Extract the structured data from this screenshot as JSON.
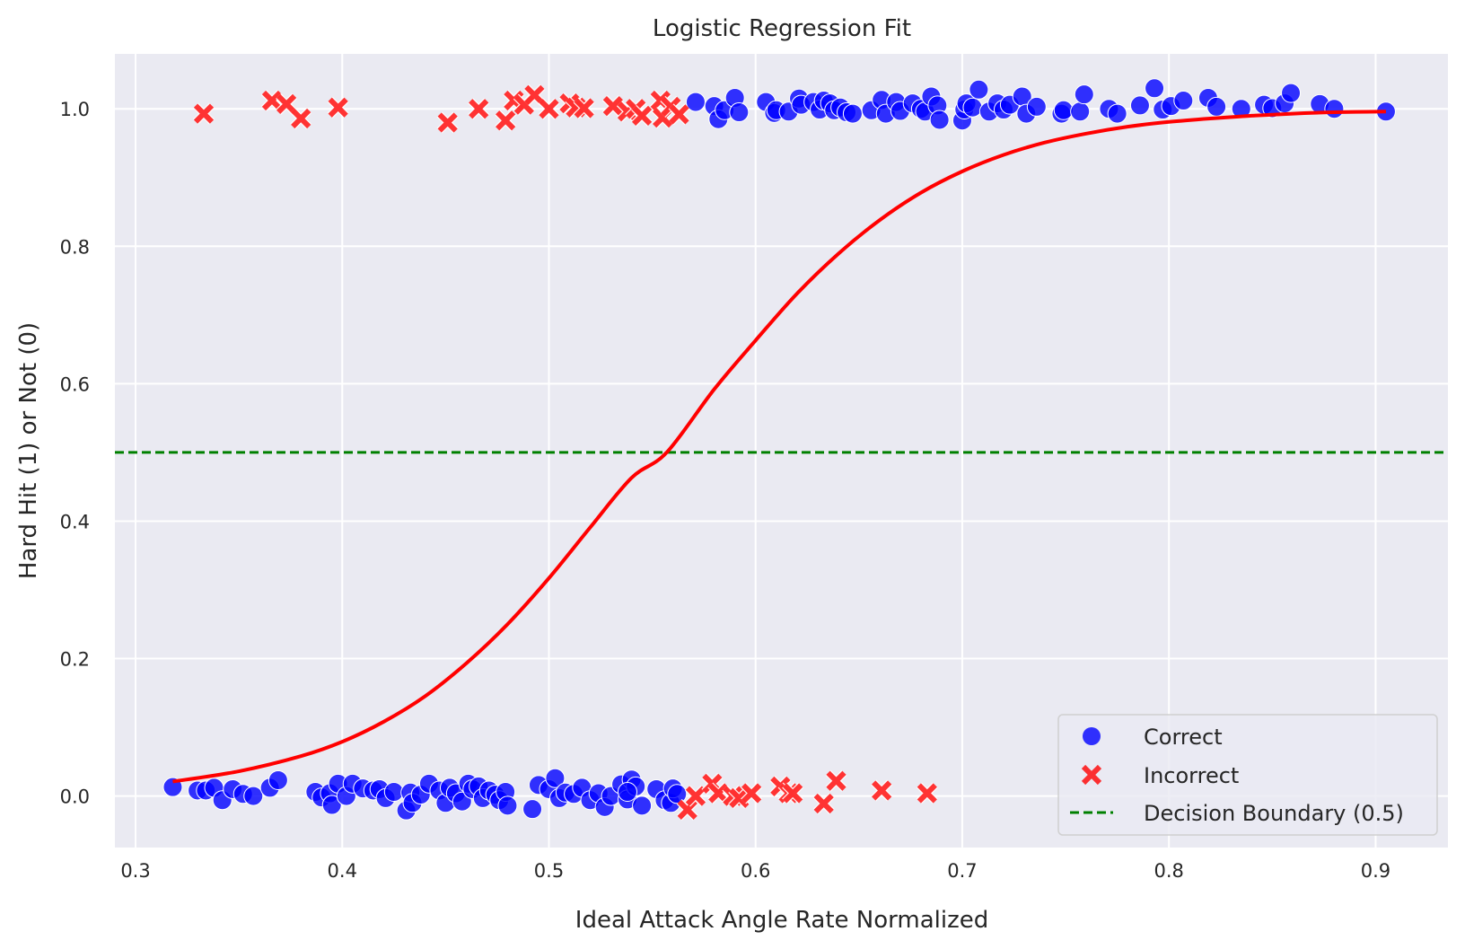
{
  "colors": {
    "background": "#EAEAF2",
    "grid": "#FFFFFF",
    "correct": "#0000FF",
    "incorrect": "#FF0000",
    "curve": "#FF0000",
    "boundary": "#008000"
  },
  "chart_data": {
    "type": "scatter",
    "title": "Logistic Regression Fit",
    "xlabel": "Ideal Attack Angle Rate Normalized",
    "ylabel": "Hard Hit (1) or Not (0)",
    "xlim": [
      0.29,
      0.935
    ],
    "ylim": [
      -0.075,
      1.08
    ],
    "xticks": [
      0.3,
      0.4,
      0.5,
      0.6,
      0.7,
      0.8,
      0.9
    ],
    "xtick_labels": [
      "0.3",
      "0.4",
      "0.5",
      "0.6",
      "0.7",
      "0.8",
      "0.9"
    ],
    "yticks": [
      0.0,
      0.2,
      0.4,
      0.6,
      0.8,
      1.0
    ],
    "ytick_labels": [
      "0.0",
      "0.2",
      "0.4",
      "0.6",
      "0.8",
      "1.0"
    ],
    "grid": true,
    "legend_position": "bottom-right",
    "legend": [
      {
        "label": "Correct",
        "marker": "circle"
      },
      {
        "label": "Incorrect",
        "marker": "x"
      },
      {
        "label": "Decision Boundary (0.5)",
        "marker": "dashed-line"
      }
    ],
    "decision_boundary": 0.5,
    "curve": {
      "x": [
        0.318,
        0.35,
        0.38,
        0.4,
        0.42,
        0.44,
        0.46,
        0.48,
        0.5,
        0.52,
        0.54,
        0.557,
        0.58,
        0.6,
        0.62,
        0.64,
        0.66,
        0.68,
        0.7,
        0.72,
        0.74,
        0.76,
        0.78,
        0.8,
        0.82,
        0.84,
        0.86,
        0.88,
        0.905
      ],
      "y": [
        0.021,
        0.036,
        0.058,
        0.079,
        0.108,
        0.145,
        0.193,
        0.25,
        0.317,
        0.391,
        0.463,
        0.5,
        0.592,
        0.663,
        0.731,
        0.789,
        0.838,
        0.878,
        0.909,
        0.933,
        0.951,
        0.964,
        0.974,
        0.981,
        0.986,
        0.99,
        0.993,
        0.995,
        0.996
      ]
    },
    "series": [
      {
        "name": "Correct",
        "points": [
          [
            0.318,
            0.013
          ],
          [
            0.33,
            0.008
          ],
          [
            0.334,
            0.008
          ],
          [
            0.338,
            0.012
          ],
          [
            0.342,
            -0.006
          ],
          [
            0.347,
            0.01
          ],
          [
            0.352,
            0.003
          ],
          [
            0.357,
            0.0
          ],
          [
            0.365,
            0.012
          ],
          [
            0.369,
            0.023
          ],
          [
            0.387,
            0.006
          ],
          [
            0.39,
            -0.002
          ],
          [
            0.394,
            0.004
          ],
          [
            0.395,
            -0.013
          ],
          [
            0.398,
            0.018
          ],
          [
            0.402,
            0.0
          ],
          [
            0.405,
            0.018
          ],
          [
            0.41,
            0.011
          ],
          [
            0.415,
            0.008
          ],
          [
            0.418,
            0.01
          ],
          [
            0.421,
            -0.003
          ],
          [
            0.425,
            0.006
          ],
          [
            0.431,
            -0.021
          ],
          [
            0.433,
            0.005
          ],
          [
            0.434,
            -0.01
          ],
          [
            0.438,
            0.002
          ],
          [
            0.442,
            0.018
          ],
          [
            0.447,
            0.008
          ],
          [
            0.45,
            -0.01
          ],
          [
            0.452,
            0.012
          ],
          [
            0.455,
            0.004
          ],
          [
            0.458,
            -0.008
          ],
          [
            0.461,
            0.018
          ],
          [
            0.463,
            0.01
          ],
          [
            0.466,
            0.014
          ],
          [
            0.468,
            -0.003
          ],
          [
            0.471,
            0.008
          ],
          [
            0.474,
            0.002
          ],
          [
            0.476,
            -0.006
          ],
          [
            0.479,
            0.006
          ],
          [
            0.48,
            -0.014
          ],
          [
            0.492,
            -0.019
          ],
          [
            0.495,
            0.016
          ],
          [
            0.5,
            0.01
          ],
          [
            0.503,
            0.026
          ],
          [
            0.505,
            -0.003
          ],
          [
            0.508,
            0.005
          ],
          [
            0.512,
            0.003
          ],
          [
            0.516,
            0.012
          ],
          [
            0.52,
            -0.006
          ],
          [
            0.524,
            0.004
          ],
          [
            0.527,
            -0.016
          ],
          [
            0.53,
            0.0
          ],
          [
            0.535,
            0.017
          ],
          [
            0.538,
            -0.005
          ],
          [
            0.54,
            0.024
          ],
          [
            0.542,
            0.014
          ],
          [
            0.545,
            -0.014
          ],
          [
            0.552,
            0.01
          ],
          [
            0.556,
            -0.006
          ],
          [
            0.559,
            -0.01
          ],
          [
            0.56,
            0.011
          ],
          [
            0.562,
            0.003
          ],
          [
            0.538,
            0.006
          ],
          [
            0.571,
            1.01
          ],
          [
            0.58,
            1.004
          ],
          [
            0.582,
            0.985
          ],
          [
            0.585,
            0.998
          ],
          [
            0.59,
            1.016
          ],
          [
            0.592,
            0.995
          ],
          [
            0.605,
            1.01
          ],
          [
            0.609,
            0.994
          ],
          [
            0.61,
            0.998
          ],
          [
            0.616,
            0.996
          ],
          [
            0.621,
            1.015
          ],
          [
            0.622,
            1.006
          ],
          [
            0.628,
            1.01
          ],
          [
            0.631,
            0.999
          ],
          [
            0.633,
            1.012
          ],
          [
            0.636,
            1.008
          ],
          [
            0.638,
            0.998
          ],
          [
            0.641,
            1.002
          ],
          [
            0.644,
            0.995
          ],
          [
            0.647,
            0.993
          ],
          [
            0.656,
            0.998
          ],
          [
            0.661,
            1.013
          ],
          [
            0.663,
            0.993
          ],
          [
            0.668,
            1.01
          ],
          [
            0.67,
            0.997
          ],
          [
            0.676,
            1.008
          ],
          [
            0.68,
            1.0
          ],
          [
            0.682,
            0.996
          ],
          [
            0.685,
            1.018
          ],
          [
            0.688,
            1.005
          ],
          [
            0.689,
            0.984
          ],
          [
            0.7,
            0.983
          ],
          [
            0.701,
            0.999
          ],
          [
            0.702,
            1.008
          ],
          [
            0.705,
            1.002
          ],
          [
            0.708,
            1.028
          ],
          [
            0.713,
            0.996
          ],
          [
            0.717,
            1.008
          ],
          [
            0.72,
            0.999
          ],
          [
            0.723,
            1.006
          ],
          [
            0.729,
            1.018
          ],
          [
            0.731,
            0.993
          ],
          [
            0.736,
            1.003
          ],
          [
            0.748,
            0.993
          ],
          [
            0.749,
            0.998
          ],
          [
            0.757,
            0.996
          ],
          [
            0.759,
            1.021
          ],
          [
            0.771,
            1.0
          ],
          [
            0.775,
            0.993
          ],
          [
            0.786,
            1.005
          ],
          [
            0.793,
            1.03
          ],
          [
            0.797,
            0.999
          ],
          [
            0.801,
            1.004
          ],
          [
            0.807,
            1.012
          ],
          [
            0.819,
            1.016
          ],
          [
            0.823,
            1.003
          ],
          [
            0.835,
            1.0
          ],
          [
            0.846,
            1.006
          ],
          [
            0.85,
            1.001
          ],
          [
            0.856,
            1.008
          ],
          [
            0.859,
            1.023
          ],
          [
            0.873,
            1.007
          ],
          [
            0.88,
            1.0
          ],
          [
            0.905,
            0.996
          ]
        ]
      },
      {
        "name": "Incorrect",
        "points": [
          [
            0.333,
            0.993
          ],
          [
            0.366,
            1.012
          ],
          [
            0.373,
            1.007
          ],
          [
            0.38,
            0.986
          ],
          [
            0.398,
            1.002
          ],
          [
            0.451,
            0.98
          ],
          [
            0.466,
            1.0
          ],
          [
            0.479,
            0.983
          ],
          [
            0.483,
            1.012
          ],
          [
            0.488,
            1.006
          ],
          [
            0.493,
            1.02
          ],
          [
            0.5,
            1.0
          ],
          [
            0.51,
            1.008
          ],
          [
            0.513,
            1.002
          ],
          [
            0.517,
            1.001
          ],
          [
            0.531,
            1.004
          ],
          [
            0.538,
            0.996
          ],
          [
            0.542,
            1.0
          ],
          [
            0.545,
            0.99
          ],
          [
            0.554,
            1.012
          ],
          [
            0.555,
            0.987
          ],
          [
            0.559,
            1.003
          ],
          [
            0.563,
            0.992
          ],
          [
            0.567,
            -0.02
          ],
          [
            0.571,
            0.0
          ],
          [
            0.579,
            0.018
          ],
          [
            0.582,
            0.004
          ],
          [
            0.589,
            0.0
          ],
          [
            0.592,
            -0.003
          ],
          [
            0.598,
            0.004
          ],
          [
            0.612,
            0.014
          ],
          [
            0.616,
            0.004
          ],
          [
            0.618,
            0.004
          ],
          [
            0.633,
            -0.011
          ],
          [
            0.639,
            0.022
          ],
          [
            0.661,
            0.008
          ],
          [
            0.683,
            0.004
          ]
        ]
      }
    ]
  }
}
